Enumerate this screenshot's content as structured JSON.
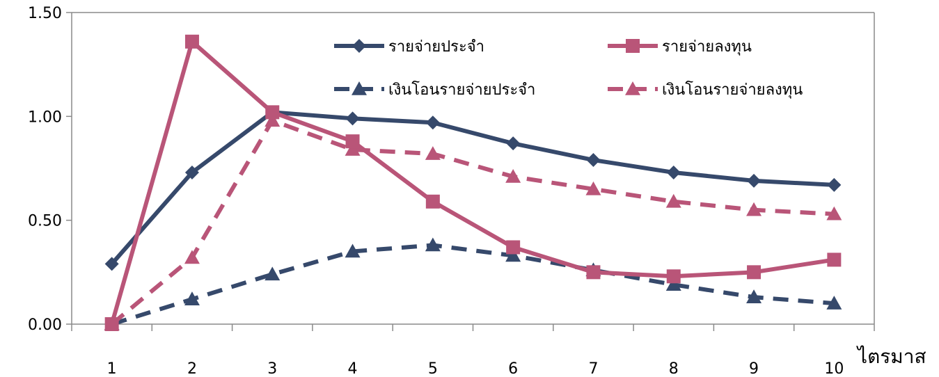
{
  "chart_data": {
    "type": "line",
    "title": "",
    "xlabel": "ไตรมาส",
    "ylabel": "",
    "x": [
      1,
      2,
      3,
      4,
      5,
      6,
      7,
      8,
      9,
      10
    ],
    "ylim": [
      0,
      1.5
    ],
    "yticks": [
      "0.00",
      "0.50",
      "1.00",
      "1.50"
    ],
    "grid": false,
    "legend_position": "top-right",
    "series": [
      {
        "name": "รายจ่ายประจำ",
        "color": "#36496B",
        "dash": "solid",
        "marker": "diamond",
        "values": [
          0.29,
          0.73,
          1.02,
          0.99,
          0.97,
          0.87,
          0.79,
          0.73,
          0.69,
          0.67
        ]
      },
      {
        "name": "รายจ่ายลงทุน",
        "color": "#B95578",
        "dash": "solid",
        "marker": "square",
        "values": [
          0.0,
          1.36,
          1.02,
          0.88,
          0.59,
          0.37,
          0.25,
          0.23,
          0.25,
          0.31
        ]
      },
      {
        "name": "เงินโอนรายจ่ายประจำ",
        "color": "#36496B",
        "dash": "dashed",
        "marker": "triangle",
        "values": [
          0.0,
          0.12,
          0.24,
          0.35,
          0.38,
          0.33,
          0.26,
          0.19,
          0.13,
          0.1
        ]
      },
      {
        "name": "เงินโอนรายจ่ายลงทุน",
        "color": "#B95578",
        "dash": "dashed",
        "marker": "triangle",
        "values": [
          0.0,
          0.32,
          0.98,
          0.84,
          0.82,
          0.71,
          0.65,
          0.59,
          0.55,
          0.53
        ]
      }
    ]
  }
}
